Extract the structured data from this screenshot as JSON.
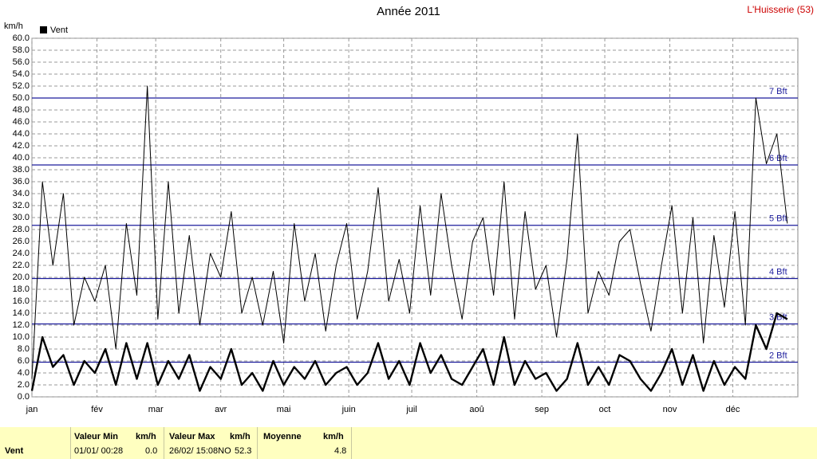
{
  "chart_data": {
    "type": "line",
    "title": "Année 2011",
    "location": "L'Huisserie (53)",
    "y_label": "km/h",
    "x": [
      1,
      6,
      11,
      16,
      21,
      26,
      31,
      36,
      41,
      46,
      51,
      56,
      61,
      66,
      71,
      76,
      81,
      86,
      91,
      96,
      101,
      106,
      111,
      116,
      121,
      126,
      131,
      136,
      141,
      146,
      151,
      156,
      161,
      166,
      171,
      176,
      181,
      186,
      191,
      196,
      201,
      206,
      211,
      216,
      221,
      226,
      231,
      236,
      241,
      246,
      251,
      256,
      261,
      266,
      271,
      276,
      281,
      286,
      291,
      296,
      301,
      306,
      311,
      316,
      321,
      326,
      331,
      336,
      341,
      346,
      351,
      356,
      361
    ],
    "xlim": [
      1,
      366
    ],
    "xticks": [
      {
        "value": 1,
        "label": "jan"
      },
      {
        "value": 32,
        "label": "fév"
      },
      {
        "value": 60,
        "label": "mar"
      },
      {
        "value": 91,
        "label": "avr"
      },
      {
        "value": 121,
        "label": "mai"
      },
      {
        "value": 152,
        "label": "juin"
      },
      {
        "value": 182,
        "label": "juil"
      },
      {
        "value": 213,
        "label": "aoû"
      },
      {
        "value": 244,
        "label": "sep"
      },
      {
        "value": 274,
        "label": "oct"
      },
      {
        "value": 305,
        "label": "nov"
      },
      {
        "value": 335,
        "label": "déc"
      }
    ],
    "ylim": [
      0,
      60
    ],
    "yticks": [
      {
        "value": 0,
        "label": "0.0"
      },
      {
        "value": 2,
        "label": "2.0"
      },
      {
        "value": 4,
        "label": "4.0"
      },
      {
        "value": 6,
        "label": "6.0"
      },
      {
        "value": 8,
        "label": "8.0"
      },
      {
        "value": 10,
        "label": "10.0"
      },
      {
        "value": 12,
        "label": "12.0"
      },
      {
        "value": 14,
        "label": "14.0"
      },
      {
        "value": 16,
        "label": "16.0"
      },
      {
        "value": 18,
        "label": "18.0"
      },
      {
        "value": 20,
        "label": "20.0"
      },
      {
        "value": 22,
        "label": "22.0"
      },
      {
        "value": 24,
        "label": "24.0"
      },
      {
        "value": 26,
        "label": "26.0"
      },
      {
        "value": 28,
        "label": "28.0"
      },
      {
        "value": 30,
        "label": "30.0"
      },
      {
        "value": 32,
        "label": "32.0"
      },
      {
        "value": 34,
        "label": "34.0"
      },
      {
        "value": 36,
        "label": "36.0"
      },
      {
        "value": 38,
        "label": "38.0"
      },
      {
        "value": 40,
        "label": "40.0"
      },
      {
        "value": 42,
        "label": "42.0"
      },
      {
        "value": 44,
        "label": "44.0"
      },
      {
        "value": 46,
        "label": "46.0"
      },
      {
        "value": 48,
        "label": "48.0"
      },
      {
        "value": 50,
        "label": "50.0"
      },
      {
        "value": 52,
        "label": "52.0"
      },
      {
        "value": 54,
        "label": "54.0"
      },
      {
        "value": 56,
        "label": "56.0"
      },
      {
        "value": 58,
        "label": "58.0"
      },
      {
        "value": 60,
        "label": "60.0"
      }
    ],
    "grid": true,
    "series": [
      {
        "color": "#000000",
        "values": [
          3,
          36,
          22,
          34,
          12,
          20,
          16,
          22,
          8,
          29,
          17,
          52,
          13,
          36,
          14,
          27,
          12,
          24,
          20,
          31,
          14,
          20,
          12,
          21,
          9,
          29,
          16,
          24,
          11,
          22,
          29,
          13,
          21,
          35,
          16,
          23,
          14,
          32,
          17,
          34,
          22,
          13,
          26,
          30,
          17,
          36,
          13,
          31,
          18,
          22,
          10,
          23,
          44,
          14,
          21,
          17,
          26,
          28,
          19,
          11,
          22,
          32,
          14,
          30,
          9,
          27,
          15,
          31,
          12,
          50,
          39,
          44,
          29
        ]
      },
      {
        "name": "Vent",
        "color": "#000000",
        "values": [
          1,
          10,
          5,
          7,
          2,
          6,
          4,
          8,
          2,
          9,
          3,
          9,
          2,
          6,
          3,
          7,
          1,
          5,
          3,
          8,
          2,
          4,
          1,
          6,
          2,
          5,
          3,
          6,
          2,
          4,
          5,
          2,
          4,
          9,
          3,
          6,
          2,
          9,
          4,
          7,
          3,
          2,
          5,
          8,
          2,
          10,
          2,
          6,
          3,
          4,
          1,
          3,
          9,
          2,
          5,
          2,
          7,
          6,
          3,
          1,
          4,
          8,
          2,
          7,
          1,
          6,
          2,
          5,
          3,
          12,
          8,
          14,
          13
        ]
      }
    ],
    "ref_color": "#1c1c9c",
    "ref_lines": [
      {
        "value": 5.8,
        "label": "2 Bft"
      },
      {
        "value": 12.2,
        "label": "3 Bft"
      },
      {
        "value": 19.8,
        "label": "4 Bft"
      },
      {
        "value": 28.7,
        "label": "5 Bft"
      },
      {
        "value": 38.8,
        "label": "6 Bft"
      },
      {
        "value": 50,
        "label": "7 Bft"
      }
    ]
  },
  "table": {
    "row_header": "Vent",
    "columns": [
      {
        "header": "Valeur Min",
        "unit": "km/h",
        "date": "01/01/ 00:28",
        "value": "0.0"
      },
      {
        "header": "Valeur Max",
        "unit": "km/h",
        "date": "26/02/ 15:08NO",
        "value": "52.3"
      },
      {
        "header": "Moyenne",
        "unit": "km/h",
        "value": "4.8"
      }
    ]
  }
}
